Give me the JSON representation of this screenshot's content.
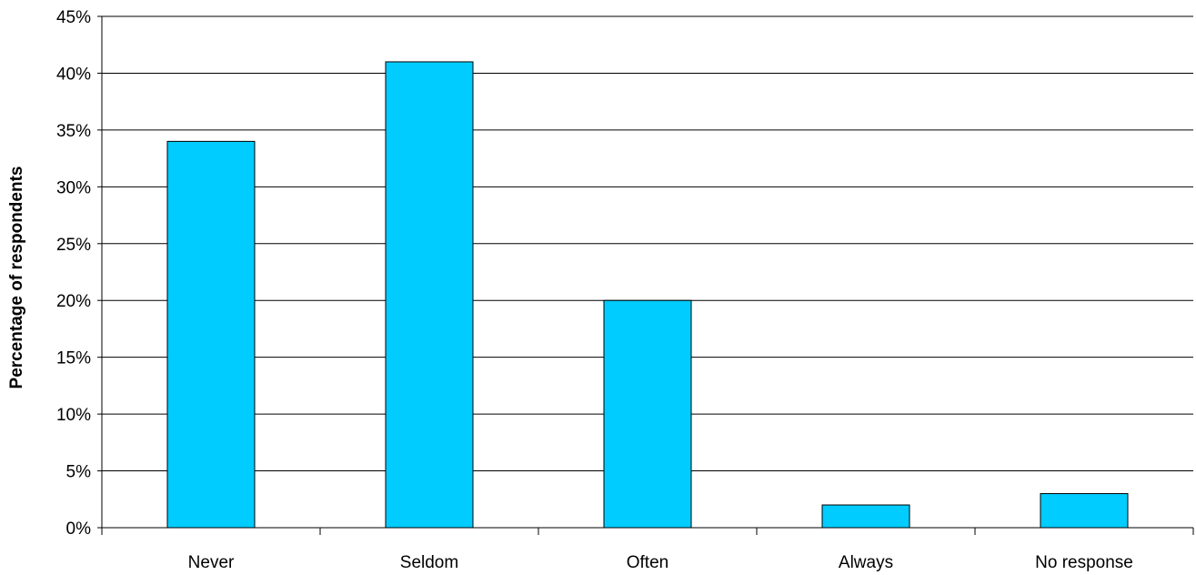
{
  "chart_data": {
    "type": "bar",
    "title": "",
    "xlabel": "",
    "ylabel": "Percentage of respondents",
    "categories": [
      "Never",
      "Seldom",
      "Often",
      "Always",
      "No response"
    ],
    "values": [
      34,
      41,
      20,
      2,
      3
    ],
    "ylim": [
      0,
      45
    ],
    "yticks": [
      "0%",
      "5%",
      "10%",
      "15%",
      "20%",
      "25%",
      "30%",
      "35%",
      "40%",
      "45%"
    ],
    "grid": true,
    "legend": "none",
    "bar_color": "#00CCFF"
  }
}
